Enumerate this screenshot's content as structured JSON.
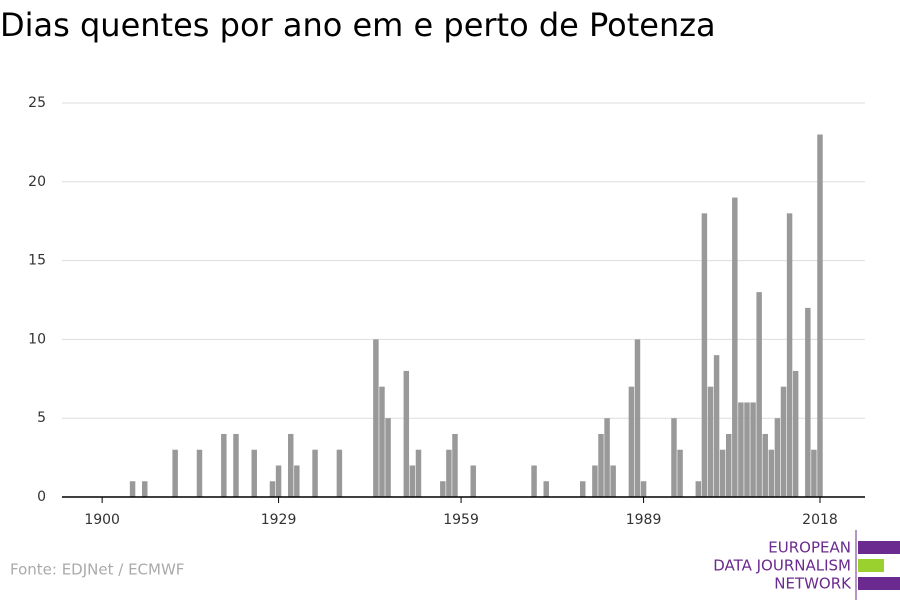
{
  "chart_data": {
    "type": "bar",
    "title": "Dias quentes por ano em e perto de Potenza",
    "x": [
      1905,
      1907,
      1912,
      1916,
      1920,
      1922,
      1925,
      1928,
      1929,
      1931,
      1932,
      1935,
      1939,
      1945,
      1946,
      1947,
      1950,
      1951,
      1952,
      1956,
      1957,
      1958,
      1961,
      1971,
      1973,
      1979,
      1981,
      1982,
      1983,
      1984,
      1987,
      1988,
      1989,
      1994,
      1995,
      1998,
      1999,
      2000,
      2001,
      2002,
      2003,
      2004,
      2005,
      2006,
      2007,
      2008,
      2009,
      2010,
      2011,
      2012,
      2013,
      2014,
      2016,
      2017,
      2018
    ],
    "values": [
      1,
      1,
      3,
      3,
      4,
      4,
      3,
      1,
      2,
      4,
      2,
      3,
      3,
      10,
      7,
      5,
      8,
      2,
      3,
      1,
      3,
      4,
      2,
      2,
      1,
      1,
      2,
      4,
      5,
      2,
      7,
      10,
      1,
      5,
      3,
      1,
      18,
      7,
      9,
      3,
      4,
      19,
      6,
      6,
      6,
      13,
      4,
      3,
      5,
      7,
      18,
      8,
      12,
      3,
      23
    ],
    "color": "#999999",
    "xlim": [
      1893.4,
      2025.4
    ],
    "xticks": [
      1900,
      1929,
      1959,
      1989,
      2018
    ],
    "ylim": [
      0,
      25
    ],
    "yticks": [
      0,
      5,
      10,
      15,
      20,
      25
    ],
    "grid": true,
    "source": "Fonte: EDJNet / ECMWF"
  },
  "logo": {
    "lines": [
      "EUROPEAN",
      "DATA JOURNALISM",
      "NETWORK"
    ]
  }
}
